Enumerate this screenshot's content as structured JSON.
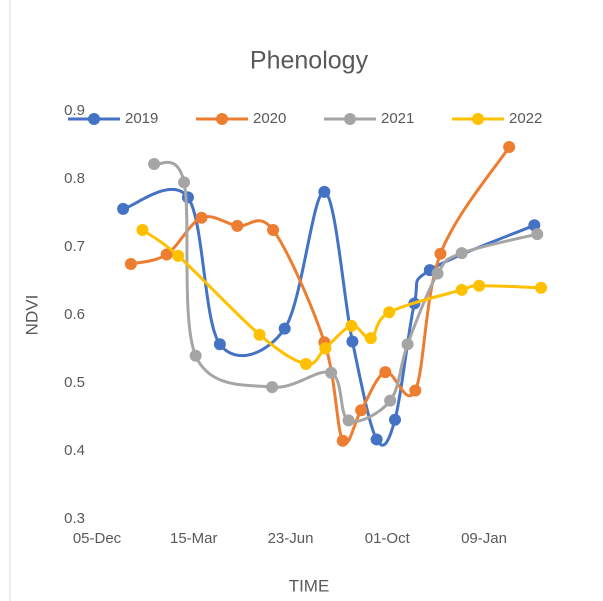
{
  "chart_data": {
    "type": "line",
    "title": "Phenology",
    "x_label": "TIME",
    "y_label": "NDVI",
    "xlim": [
      0,
      400
    ],
    "xticks": [
      {
        "value": 0,
        "label": "05-Dec"
      },
      {
        "value": 100,
        "label": "15-Mar"
      },
      {
        "value": 200,
        "label": "23-Jun"
      },
      {
        "value": 300,
        "label": "01-Oct"
      },
      {
        "value": 400,
        "label": "09-Jan"
      }
    ],
    "ylim": [
      0.3,
      0.9
    ],
    "yticks": [
      0.3,
      0.4,
      0.5,
      0.6,
      0.7,
      0.8,
      0.9
    ],
    "grid": false,
    "smooth": true,
    "legend": "top",
    "series": [
      {
        "name": "2019",
        "color": "#4472c4",
        "x": [
          27,
          94,
          127,
          194,
          235,
          264,
          289,
          308,
          328,
          344,
          452
        ],
        "values": [
          0.756,
          0.773,
          0.557,
          0.58,
          0.781,
          0.561,
          0.417,
          0.446,
          0.617,
          0.666,
          0.732
        ]
      },
      {
        "name": "2020",
        "color": "#ed7d31",
        "x": [
          35,
          72,
          108,
          145,
          182,
          235,
          254,
          273,
          298,
          329,
          355,
          426
        ],
        "values": [
          0.675,
          0.689,
          0.743,
          0.731,
          0.725,
          0.56,
          0.415,
          0.46,
          0.516,
          0.489,
          0.69,
          0.847
        ]
      },
      {
        "name": "2021",
        "color": "#a5a5a5",
        "x": [
          59,
          90,
          102,
          181,
          242,
          260,
          303,
          321,
          352,
          377,
          455
        ],
        "values": [
          0.822,
          0.795,
          0.54,
          0.494,
          0.515,
          0.445,
          0.474,
          0.557,
          0.661,
          0.691,
          0.719
        ]
      },
      {
        "name": "2022",
        "color": "#ffc000",
        "x": [
          47,
          84,
          168,
          216,
          236,
          263,
          283,
          302,
          377,
          395,
          459
        ],
        "values": [
          0.725,
          0.687,
          0.571,
          0.528,
          0.551,
          0.584,
          0.566,
          0.604,
          0.637,
          0.643,
          0.64
        ]
      }
    ]
  }
}
